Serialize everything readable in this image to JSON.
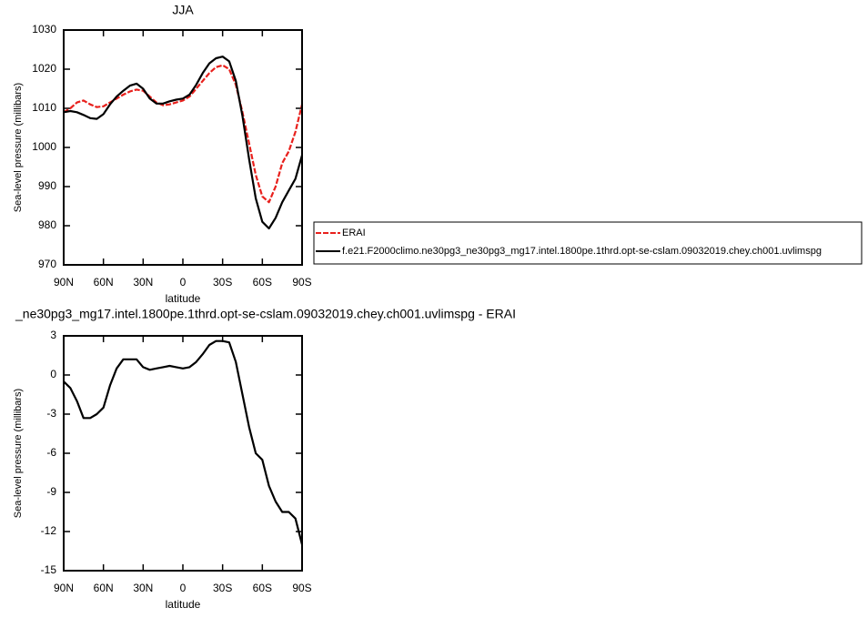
{
  "chart_data": [
    {
      "type": "line",
      "title": "JJA",
      "xlabel": "latitude",
      "ylabel": "Sea-level pressure (millibars)",
      "x": [
        90,
        85,
        80,
        75,
        70,
        65,
        60,
        55,
        50,
        45,
        40,
        35,
        30,
        25,
        20,
        15,
        10,
        5,
        0,
        -5,
        -10,
        -15,
        -20,
        -25,
        -30,
        -35,
        -40,
        -45,
        -50,
        -55,
        -60,
        -65,
        -70,
        -75,
        -80,
        -85,
        -90
      ],
      "xlim": [
        90,
        -90
      ],
      "xticks": [
        {
          "value": 90,
          "label": "90N"
        },
        {
          "value": 60,
          "label": "60N"
        },
        {
          "value": 30,
          "label": "30N"
        },
        0,
        {
          "value": -30,
          "label": "30S"
        },
        {
          "value": -60,
          "label": "60S"
        },
        {
          "value": -90,
          "label": "90S"
        }
      ],
      "ylim": [
        970,
        1030
      ],
      "yticks": [
        970,
        980,
        990,
        1000,
        1010,
        1020,
        1030
      ],
      "series": [
        {
          "name": "ERAI",
          "color": "#e8201c",
          "linestyle": "dashed",
          "values": [
            1009,
            1010,
            1011.5,
            1012,
            1011,
            1010.3,
            1010.5,
            1011.5,
            1012.5,
            1013.5,
            1014.3,
            1014.8,
            1014.5,
            1013,
            1011.5,
            1010.8,
            1011,
            1011.5,
            1012,
            1013,
            1015,
            1017,
            1019,
            1020.5,
            1021,
            1020,
            1016,
            1009,
            1001,
            993,
            987.5,
            986,
            990,
            996,
            999,
            1004,
            1011
          ]
        },
        {
          "name": "f.e21.F2000climo.ne30pg3_ne30pg3_mg17.intel.1800pe.1thrd.opt-se-cslam.09032019.chey.ch001.uvlimspg",
          "color": "#000000",
          "linestyle": "solid",
          "values": [
            1009,
            1009.3,
            1009,
            1008.3,
            1007.5,
            1007.3,
            1008.5,
            1011,
            1013,
            1014.5,
            1015.8,
            1016.3,
            1015,
            1012.5,
            1011.2,
            1011.2,
            1011.8,
            1012.2,
            1012.5,
            1013.5,
            1016,
            1019,
            1021.5,
            1022.8,
            1023.2,
            1022,
            1017,
            1008,
            997,
            987,
            981,
            979.3,
            982,
            986,
            989,
            992,
            998
          ]
        }
      ]
    },
    {
      "type": "line",
      "title": "_ne30pg3_mg17.intel.1800pe.1thrd.opt-se-cslam.09032019.chey.ch001.uvlimspg - ERAI",
      "xlabel": "latitude",
      "ylabel": "Sea-level pressure (millibars)",
      "x": [
        90,
        85,
        80,
        75,
        70,
        65,
        60,
        55,
        50,
        45,
        40,
        35,
        30,
        25,
        20,
        15,
        10,
        5,
        0,
        -5,
        -10,
        -15,
        -20,
        -25,
        -30,
        -35,
        -40,
        -45,
        -50,
        -55,
        -60,
        -65,
        -70,
        -75,
        -80,
        -85,
        -90
      ],
      "xlim": [
        90,
        -90
      ],
      "xticks": [
        {
          "value": 90,
          "label": "90N"
        },
        {
          "value": 60,
          "label": "60N"
        },
        {
          "value": 30,
          "label": "30N"
        },
        0,
        {
          "value": -30,
          "label": "30S"
        },
        {
          "value": -60,
          "label": "60S"
        },
        {
          "value": -90,
          "label": "90S"
        }
      ],
      "ylim": [
        -15,
        3
      ],
      "yticks": [
        -15,
        -12,
        -9,
        -6,
        -3,
        0,
        3
      ],
      "color": "#000000",
      "values": [
        -0.5,
        -1,
        -2,
        -3.3,
        -3.3,
        -3,
        -2.5,
        -0.8,
        0.5,
        1.2,
        1.2,
        1.2,
        0.6,
        0.4,
        0.5,
        0.6,
        0.7,
        0.6,
        0.5,
        0.6,
        1,
        1.6,
        2.3,
        2.6,
        2.6,
        2.5,
        1,
        -1.5,
        -4,
        -6,
        -6.5,
        -8.5,
        -9.7,
        -10.5,
        -10.5,
        -11,
        -13
      ]
    }
  ]
}
